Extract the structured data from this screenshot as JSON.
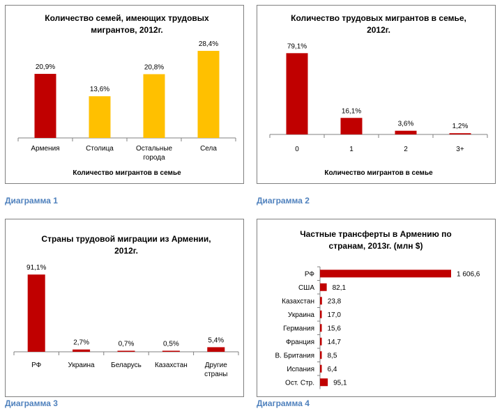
{
  "captions": [
    "Диаграмма 1",
    "Диаграмма 2",
    "Диаграмма 3",
    "Диаграмма 4"
  ],
  "colors": {
    "red": "#c00000",
    "yellow": "#ffc000"
  },
  "chart_data": [
    {
      "type": "bar",
      "title": [
        "Количество семей, имеющих трудовых",
        "мигрантов, 2012г."
      ],
      "xlabel": "Количество мигрантов в семье",
      "categories": [
        [
          "Армения"
        ],
        [
          "Столица"
        ],
        [
          "Остальные",
          "города"
        ],
        [
          "Села"
        ]
      ],
      "values": [
        20.9,
        13.6,
        20.8,
        28.4
      ],
      "value_labels": [
        "20,9%",
        "13,6%",
        "20,8%",
        "28,4%"
      ],
      "bar_colors": [
        "#c00000",
        "#ffc000",
        "#ffc000",
        "#ffc000"
      ],
      "ylim": [
        0,
        30
      ]
    },
    {
      "type": "bar",
      "title": [
        "Количество трудовых мигрантов в семье,",
        "2012г."
      ],
      "xlabel": "Количество мигрантов в семье",
      "categories": [
        [
          "0"
        ],
        [
          "1"
        ],
        [
          "2"
        ],
        [
          "3+"
        ]
      ],
      "values": [
        79.1,
        16.1,
        3.6,
        1.2
      ],
      "value_labels": [
        "79,1%",
        "16,1%",
        "3,6%",
        "1,2%"
      ],
      "bar_colors": [
        "#c00000",
        "#c00000",
        "#c00000",
        "#c00000"
      ],
      "ylim": [
        0,
        80
      ]
    },
    {
      "type": "bar",
      "title": [
        "Страны трудовой миграции из Армении,",
        "2012г."
      ],
      "xlabel": "",
      "categories": [
        [
          "РФ"
        ],
        [
          "Украина"
        ],
        [
          "Беларусь"
        ],
        [
          "Казахстан"
        ],
        [
          "Другие",
          "страны"
        ]
      ],
      "values": [
        91.1,
        2.7,
        0.7,
        0.5,
        5.4
      ],
      "value_labels": [
        "91,1%",
        "2,7%",
        "0,7%",
        "0,5%",
        "5,4%"
      ],
      "bar_colors": [
        "#c00000",
        "#c00000",
        "#c00000",
        "#c00000",
        "#c00000"
      ],
      "ylim": [
        0,
        92
      ]
    },
    {
      "type": "bar",
      "orientation": "horizontal",
      "title": [
        "Частные трансферты в Армению по",
        "странам, 2013г. (млн $)"
      ],
      "categories": [
        "РФ",
        "США",
        "Казахстан",
        "Украина",
        "Германия",
        "Франция",
        "В. Британия",
        "Испания",
        "Ост. Стр."
      ],
      "values": [
        1606.6,
        82.1,
        23.8,
        17.0,
        15.6,
        14.7,
        8.5,
        6.4,
        95.1
      ],
      "value_labels": [
        "1 606,6",
        "82,1",
        "23,8",
        "17,0",
        "15,6",
        "14,7",
        "8,5",
        "6,4",
        "95,1"
      ],
      "xlim": [
        0,
        1606.6
      ]
    }
  ]
}
